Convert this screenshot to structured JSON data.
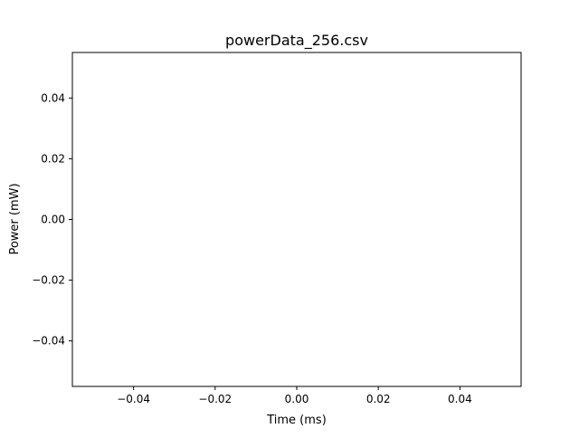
{
  "chart_data": {
    "type": "line",
    "title": "powerData_256.csv",
    "xlabel": "Time (ms)",
    "ylabel": "Power (mW)",
    "xlim": [
      -0.055,
      0.055
    ],
    "ylim": [
      -0.055,
      0.055
    ],
    "xticks": [
      -0.04,
      -0.02,
      0.0,
      0.02,
      0.04
    ],
    "yticks": [
      -0.04,
      -0.02,
      0.0,
      0.02,
      0.04
    ],
    "xtick_labels": [
      "−0.04",
      "−0.02",
      "0.00",
      "0.02",
      "0.04"
    ],
    "ytick_labels": [
      "−0.04",
      "−0.02",
      "0.00",
      "0.02",
      "0.04"
    ],
    "grid": false,
    "series": [
      {
        "name": "",
        "x": [],
        "values": []
      }
    ]
  }
}
